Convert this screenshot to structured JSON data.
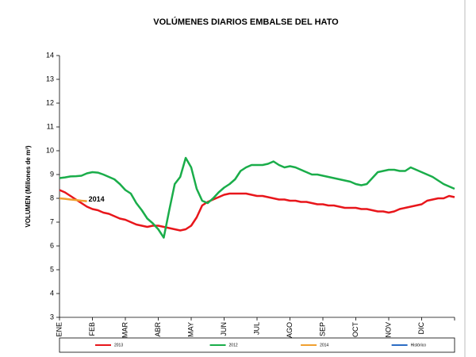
{
  "chart_data": {
    "type": "line",
    "title": "VOLÚMENES DIARIOS EMBALSE DEL HATO",
    "y_label": "VOLUMEN (Millones de m³)",
    "annotations": [
      {
        "text": "2014",
        "series": 2,
        "index": 5
      }
    ],
    "categories": [
      "ENE",
      null,
      null,
      null,
      null,
      null,
      "FEB",
      null,
      null,
      null,
      null,
      null,
      "MAR",
      null,
      null,
      null,
      null,
      null,
      "ABR",
      null,
      null,
      null,
      null,
      null,
      "MAY",
      null,
      null,
      null,
      null,
      null,
      "JUN",
      null,
      null,
      null,
      null,
      null,
      "JUL",
      null,
      null,
      null,
      null,
      null,
      "AGO",
      null,
      null,
      null,
      null,
      null,
      "SEP",
      null,
      null,
      null,
      null,
      null,
      "OCT",
      null,
      null,
      null,
      null,
      null,
      "NOV",
      null,
      null,
      null,
      null,
      null,
      "DIC",
      null,
      null,
      null,
      null,
      null,
      null
    ],
    "ylim": [
      3,
      14
    ],
    "yticks": [
      3,
      4,
      5,
      6,
      7,
      8,
      9,
      10,
      11,
      12,
      13,
      14
    ],
    "series": [
      {
        "name": "2013",
        "color": "#e8161b",
        "values": [
          8.35,
          8.25,
          8.1,
          7.95,
          7.8,
          7.65,
          7.55,
          7.5,
          7.4,
          7.35,
          7.25,
          7.15,
          7.1,
          7.0,
          6.9,
          6.85,
          6.8,
          6.85,
          6.85,
          6.8,
          6.75,
          6.7,
          6.65,
          6.7,
          6.85,
          7.2,
          7.7,
          7.85,
          7.95,
          8.05,
          8.15,
          8.2,
          8.2,
          8.2,
          8.2,
          8.15,
          8.1,
          8.1,
          8.05,
          8.0,
          7.95,
          7.95,
          7.9,
          7.9,
          7.85,
          7.85,
          7.8,
          7.75,
          7.75,
          7.7,
          7.7,
          7.65,
          7.6,
          7.6,
          7.6,
          7.55,
          7.55,
          7.5,
          7.45,
          7.45,
          7.4,
          7.45,
          7.55,
          7.6,
          7.65,
          7.7,
          7.75,
          7.9,
          7.95,
          8.0,
          8.0,
          8.1,
          8.05
        ]
      },
      {
        "name": "2012",
        "color": "#1aad4a",
        "values": [
          8.85,
          8.88,
          8.92,
          8.93,
          8.95,
          9.05,
          9.1,
          9.08,
          9.0,
          8.9,
          8.8,
          8.6,
          8.35,
          8.2,
          7.8,
          7.5,
          7.15,
          6.95,
          6.7,
          6.35,
          7.5,
          8.6,
          8.9,
          9.7,
          9.3,
          8.4,
          7.9,
          7.8,
          8.0,
          8.25,
          8.45,
          8.6,
          8.8,
          9.15,
          9.3,
          9.4,
          9.4,
          9.4,
          9.45,
          9.55,
          9.4,
          9.3,
          9.35,
          9.3,
          9.2,
          9.1,
          9.0,
          9.0,
          8.95,
          8.9,
          8.85,
          8.8,
          8.75,
          8.7,
          8.6,
          8.55,
          8.6,
          8.85,
          9.1,
          9.15,
          9.2,
          9.2,
          9.15,
          9.15,
          9.3,
          9.2,
          9.1,
          9.0,
          8.9,
          8.75,
          8.6,
          8.5,
          8.4
        ]
      },
      {
        "name": "2014",
        "color": "#f0a030",
        "values": [
          8.0,
          7.98,
          7.95,
          7.93,
          7.9,
          7.88,
          null,
          null,
          null,
          null,
          null,
          null,
          null,
          null,
          null,
          null,
          null,
          null,
          null,
          null,
          null,
          null,
          null,
          null,
          null,
          null,
          null,
          null,
          null,
          null,
          null,
          null,
          null,
          null,
          null,
          null,
          null,
          null,
          null,
          null,
          null,
          null,
          null,
          null,
          null,
          null,
          null,
          null,
          null,
          null,
          null,
          null,
          null,
          null,
          null,
          null,
          null,
          null,
          null,
          null,
          null,
          null,
          null,
          null,
          null,
          null,
          null,
          null,
          null,
          null,
          null,
          null,
          null
        ]
      },
      {
        "name": "Histórico",
        "color": "#2b6cc4",
        "values": [
          null,
          null,
          null,
          null,
          null,
          null,
          null,
          null,
          null,
          null,
          null,
          null,
          null,
          null,
          null,
          null,
          null,
          null,
          null,
          null,
          null,
          null,
          null,
          null,
          null,
          null,
          null,
          null,
          null,
          null,
          null,
          null,
          null,
          null,
          null,
          null,
          null,
          null,
          null,
          null,
          null,
          null,
          null,
          null,
          null,
          null,
          null,
          null,
          null,
          null,
          null,
          null,
          null,
          null,
          null,
          null,
          null,
          null,
          null,
          null,
          null,
          null,
          null,
          null,
          null,
          null,
          null,
          null,
          null,
          null,
          null,
          null,
          null
        ]
      }
    ]
  }
}
